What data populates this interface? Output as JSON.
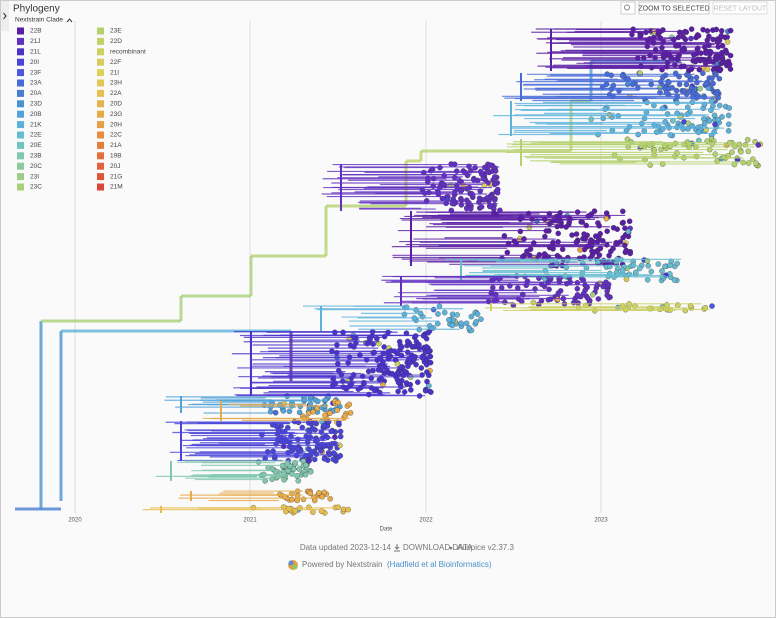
{
  "panel": {
    "title": "Phylogeny",
    "legend_title": "Nextstrain Clade",
    "legend": [
      {
        "name": "22B",
        "color": "#5a1fa6"
      },
      {
        "name": "21J",
        "color": "#6230c0"
      },
      {
        "name": "21L",
        "color": "#4a33cc"
      },
      {
        "name": "20I",
        "color": "#4a44d8"
      },
      {
        "name": "23F",
        "color": "#4a57de"
      },
      {
        "name": "23A",
        "color": "#486bd8"
      },
      {
        "name": "20A",
        "color": "#4680d2"
      },
      {
        "name": "23D",
        "color": "#4a93d2"
      },
      {
        "name": "20B",
        "color": "#53a3d8"
      },
      {
        "name": "21K",
        "color": "#5db2dc"
      },
      {
        "name": "22E",
        "color": "#66bdd0"
      },
      {
        "name": "20E",
        "color": "#72c3c0"
      },
      {
        "name": "23B",
        "color": "#80c7ad"
      },
      {
        "name": "20C",
        "color": "#8ecb9a"
      },
      {
        "name": "23I",
        "color": "#9bcd89"
      },
      {
        "name": "23C",
        "color": "#a9cf7b"
      },
      {
        "name": "23E",
        "color": "#b5d16f"
      },
      {
        "name": "22D",
        "color": "#c2d267"
      },
      {
        "name": "recombinant",
        "color": "#cdd062"
      },
      {
        "name": "22F",
        "color": "#d7cb5c"
      },
      {
        "name": "21I",
        "color": "#ddd15a"
      },
      {
        "name": "23H",
        "color": "#e2c957"
      },
      {
        "name": "22A",
        "color": "#e6be52"
      },
      {
        "name": "20D",
        "color": "#e7b34d"
      },
      {
        "name": "23G",
        "color": "#e8ab4a"
      },
      {
        "name": "20H",
        "color": "#e89d46"
      },
      {
        "name": "22C",
        "color": "#e78c42"
      },
      {
        "name": "21A",
        "color": "#e57d3f"
      },
      {
        "name": "19B",
        "color": "#e46f3c"
      },
      {
        "name": "20J",
        "color": "#e26239"
      },
      {
        "name": "21G",
        "color": "#e05537"
      },
      {
        "name": "21M",
        "color": "#dd4634"
      }
    ],
    "buttons": [
      "ZOOM TO SELECTED",
      "RESET LAYOUT"
    ],
    "axis": {
      "ticks": [
        "2020",
        "2021",
        "2022",
        "2023"
      ],
      "label": "Date"
    }
  },
  "footer": {
    "updated": "Data updated 2023-12-14",
    "download": "DOWNLOAD DATA",
    "version": "Auspice v2.37.3",
    "powered": "Powered by Nextstrain",
    "citation": "(Hadfield et al Bioinformatics)"
  }
}
